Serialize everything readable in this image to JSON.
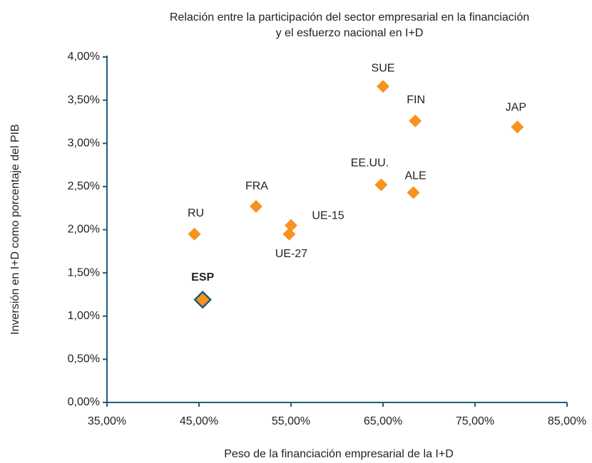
{
  "chart_data": {
    "type": "scatter",
    "title": [
      "Relación entre la participación del sector empresarial en la financiación",
      "y el esfuerzo nacional en I+D"
    ],
    "xlabel": "Peso de la financiación empresarial de la I+D",
    "ylabel": "Inversión en I+D como porcentaje del PIB",
    "labels": [
      "SUE",
      "FIN",
      "JAP",
      "EE.UU.",
      "ALE",
      "FRA",
      "UE-15",
      "UE-27",
      "RU",
      "ESP"
    ],
    "x": [
      65.0,
      68.5,
      79.6,
      64.8,
      68.3,
      51.2,
      55.0,
      54.8,
      44.5,
      45.4
    ],
    "values": [
      3.66,
      3.26,
      3.19,
      2.52,
      2.43,
      2.27,
      2.05,
      1.95,
      1.95,
      1.19
    ],
    "color": "#f7931e",
    "highlight": "ESP",
    "highlight_color": "#1f5b7a",
    "xlim": [
      35,
      85
    ],
    "xticks": [
      {
        "value": 35,
        "label": "35,00%"
      },
      {
        "value": 45,
        "label": "45,00%"
      },
      {
        "value": 55,
        "label": "55,00%"
      },
      {
        "value": 65,
        "label": "65,00%"
      },
      {
        "value": 75,
        "label": "75,00%"
      },
      {
        "value": 85,
        "label": "85,00%"
      }
    ],
    "ylim": [
      0,
      4
    ],
    "yticks": [
      {
        "value": 0,
        "label": "0,00%"
      },
      {
        "value": 0.5,
        "label": "0,50%"
      },
      {
        "value": 1,
        "label": "1,00%"
      },
      {
        "value": 1.5,
        "label": "1,50%"
      },
      {
        "value": 2,
        "label": "2,00%"
      },
      {
        "value": 2.5,
        "label": "2,50%"
      },
      {
        "value": 3,
        "label": "3,00%"
      },
      {
        "value": 3.5,
        "label": "3,50%"
      },
      {
        "value": 4,
        "label": "4,00%"
      }
    ]
  }
}
